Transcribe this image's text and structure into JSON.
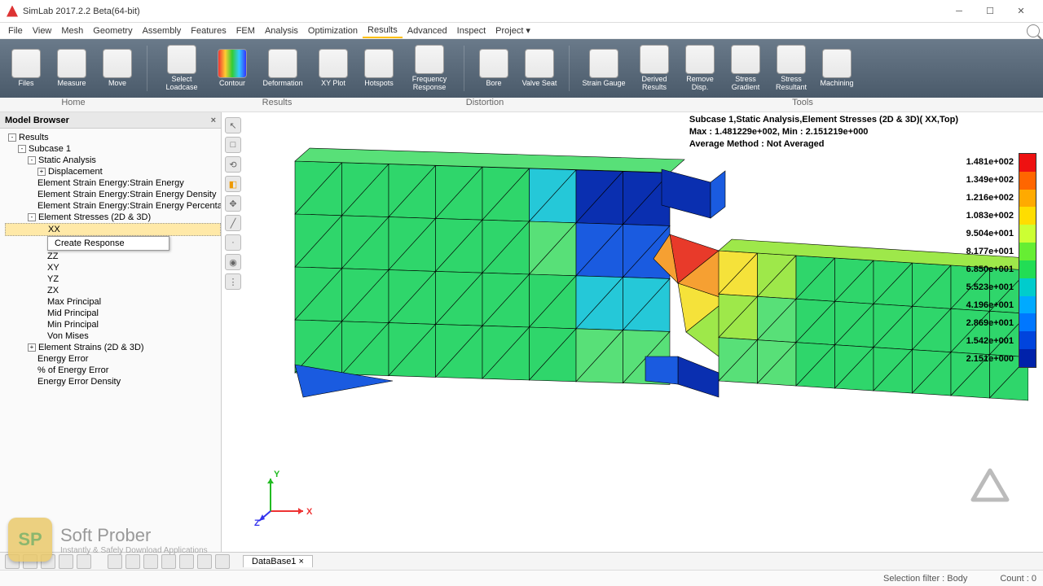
{
  "window": {
    "title": "SimLab 2017.2.2 Beta(64-bit)"
  },
  "menu": [
    "File",
    "View",
    "Mesh",
    "Geometry",
    "Assembly",
    "Features",
    "FEM",
    "Analysis",
    "Optimization",
    "Results",
    "Advanced",
    "Inspect",
    "Project"
  ],
  "menu_active_index": 9,
  "ribbon_groups": [
    "Home",
    "Results",
    "Distortion",
    "Tools"
  ],
  "ribbon_group_widths": [
    180,
    320,
    190,
    590
  ],
  "ribbon": [
    {
      "label": "Files",
      "icon_bg": "#e8e8e8"
    },
    {
      "label": "Measure",
      "icon_bg": "#e8e8e8"
    },
    {
      "label": "Move",
      "icon_bg": "#e8e8e8"
    },
    {
      "sep": true
    },
    {
      "label": "Select\nLoadcase",
      "icon_bg": "#e8e8e8",
      "wide": true
    },
    {
      "label": "Contour",
      "icon_bg": "rainbow"
    },
    {
      "label": "Deformation",
      "icon_bg": "#e8e8e8",
      "wide": true
    },
    {
      "label": "XY Plot",
      "icon_bg": "#e8e8e8"
    },
    {
      "label": "Hotspots",
      "icon_bg": "#e8e8e8"
    },
    {
      "label": "Frequency\nResponse",
      "icon_bg": "#e8e8e8",
      "wide": true
    },
    {
      "sep": true
    },
    {
      "label": "Bore",
      "icon_bg": "#e8e8e8"
    },
    {
      "label": "Valve Seat",
      "icon_bg": "#e8e8e8"
    },
    {
      "sep": true
    },
    {
      "label": "Strain Gauge",
      "icon_bg": "#e8e8e8",
      "wide": true
    },
    {
      "label": "Derived\nResults",
      "icon_bg": "#e8e8e8"
    },
    {
      "label": "Remove\nDisp.",
      "icon_bg": "#e8e8e8"
    },
    {
      "label": "Stress\nGradient",
      "icon_bg": "#e8e8e8"
    },
    {
      "label": "Stress\nResultant",
      "icon_bg": "#e8e8e8"
    },
    {
      "label": "Machining",
      "icon_bg": "#e8e8e8"
    }
  ],
  "browser": {
    "title": "Model Browser",
    "tree": [
      {
        "t": "Results",
        "d": 0,
        "exp": "-"
      },
      {
        "t": "Subcase 1",
        "d": 1,
        "exp": "-"
      },
      {
        "t": "Static Analysis",
        "d": 2,
        "exp": "-"
      },
      {
        "t": "Displacement",
        "d": 3,
        "exp": "+"
      },
      {
        "t": "Element Strain Energy:Strain Energy",
        "d": 3
      },
      {
        "t": "Element Strain Energy:Strain Energy Density",
        "d": 3
      },
      {
        "t": "Element Strain Energy:Strain Energy Percentage",
        "d": 3
      },
      {
        "t": "Element Stresses (2D & 3D)",
        "d": 2,
        "exp": "-"
      },
      {
        "t": "XX",
        "d": 4,
        "sel": true
      },
      {
        "ctx": "Create Response"
      },
      {
        "t": "ZZ",
        "d": 4
      },
      {
        "t": "XY",
        "d": 4
      },
      {
        "t": "YZ",
        "d": 4
      },
      {
        "t": "ZX",
        "d": 4
      },
      {
        "t": "Max Principal",
        "d": 4
      },
      {
        "t": "Mid Principal",
        "d": 4
      },
      {
        "t": "Min Principal",
        "d": 4
      },
      {
        "t": "Von Mises",
        "d": 4
      },
      {
        "t": "Element Strains (2D & 3D)",
        "d": 2,
        "exp": "+"
      },
      {
        "t": "Energy Error",
        "d": 3
      },
      {
        "t": "% of Energy Error",
        "d": 3
      },
      {
        "t": "Energy Error Density",
        "d": 3
      }
    ]
  },
  "info": {
    "l1": "Subcase 1,Static Analysis,Element Stresses (2D & 3D)( XX,Top)",
    "l2": "Max : 1.481229e+002, Min : 2.151219e+000",
    "l3": "Average Method : Not Averaged"
  },
  "legend": {
    "labels": [
      "1.481e+002",
      "1.349e+002",
      "1.216e+002",
      "1.083e+002",
      "9.504e+001",
      "8.177e+001",
      "6.850e+001",
      "5.523e+001",
      "4.196e+001",
      "2.869e+001",
      "1.542e+001",
      "2.151e+000"
    ],
    "colors": [
      "#e11",
      "#f60",
      "#fa0",
      "#fd0",
      "#cf3",
      "#6e3",
      "#2d5",
      "#0cc",
      "#0af",
      "#07f",
      "#04d",
      "#02a"
    ]
  },
  "axis": {
    "x": "X",
    "y": "Y",
    "z": "Z"
  },
  "mesh": {
    "background": "#ffffff",
    "edge_color": "#000000",
    "color_green": "#2fd66b",
    "color_green2": "#58e078",
    "color_lime": "#9ee84a",
    "color_yellow": "#f5e23a",
    "color_orange": "#f6a032",
    "color_red": "#e83a2a",
    "color_cyan": "#25c8d8",
    "color_blue": "#1a5be0",
    "color_dblue": "#0a2fb0"
  },
  "bottom_tab": "DataBase1",
  "status": {
    "filter": "Selection filter : Body",
    "count": "Count : 0"
  },
  "softprober": {
    "badge": "SP",
    "t1": "Soft Prober",
    "t2": "Instantly & Safely Download Applications"
  }
}
